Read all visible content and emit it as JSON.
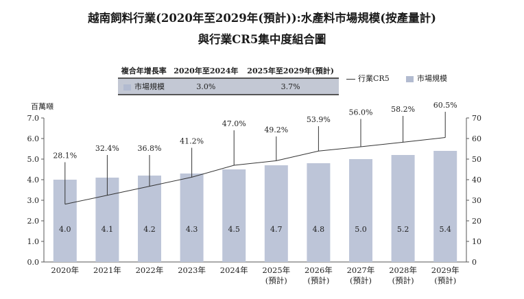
{
  "chart_data": {
    "type": "bar+line",
    "title_line1": "越南飼料行業(2020年至2029年(預計)):水產料市場規模(按產量計)",
    "title_line2": "與行業CR5集中度組合圖",
    "unit_left": "百萬噸",
    "categories": [
      [
        "2020年"
      ],
      [
        "2021年"
      ],
      [
        "2022年"
      ],
      [
        "2023年"
      ],
      [
        "2024年"
      ],
      [
        "2025年",
        "(預計)"
      ],
      [
        "2026年",
        "(預計)"
      ],
      [
        "2027年",
        "(預計)"
      ],
      [
        "2028年",
        "(預計)"
      ],
      [
        "2029年",
        "(預計)"
      ]
    ],
    "series": [
      {
        "name": "市場規模",
        "axis": "left",
        "kind": "bar",
        "values": [
          4.0,
          4.1,
          4.2,
          4.3,
          4.5,
          4.7,
          4.8,
          5.0,
          5.2,
          5.4
        ],
        "labels": [
          "4.0",
          "4.1",
          "4.2",
          "4.3",
          "4.5",
          "4.7",
          "4.8",
          "5.0",
          "5.2",
          "5.4"
        ]
      },
      {
        "name": "行業CR5",
        "axis": "right",
        "kind": "line",
        "values": [
          28.1,
          32.4,
          36.8,
          41.2,
          47.0,
          49.2,
          53.9,
          56.0,
          58.2,
          60.5
        ],
        "labels": [
          "28.1%",
          "32.4%",
          "36.8%",
          "41.2%",
          "47.0%",
          "49.2%",
          "53.9%",
          "56.0%",
          "58.2%",
          "60.5%"
        ]
      }
    ],
    "y_left": {
      "min": 0,
      "max": 7,
      "ticks": [
        "0.0",
        "1.0",
        "2.0",
        "3.0",
        "4.0",
        "5.0",
        "6.0",
        "7.0"
      ]
    },
    "y_right": {
      "min": 0,
      "max": 70,
      "ticks": [
        "0",
        "10",
        "20",
        "30",
        "40",
        "50",
        "60",
        "70"
      ]
    },
    "label_levels_percent": [
      48.5,
      52.0,
      52.0,
      55.5,
      64.0,
      61.0,
      66.0,
      69.5,
      71.0,
      73.0
    ],
    "cagr_table": {
      "headers": [
        "複合年增長率",
        "2020年至2024年",
        "2025年至2029年(預計)"
      ],
      "row_label": "市場規模",
      "values": [
        "3.0%",
        "3.7%"
      ]
    },
    "legend": {
      "line": "行業CR5",
      "bar": "市場規模"
    },
    "colors": {
      "bar": "#bdc5d8",
      "line": "#333333",
      "axis": "#555555"
    }
  }
}
